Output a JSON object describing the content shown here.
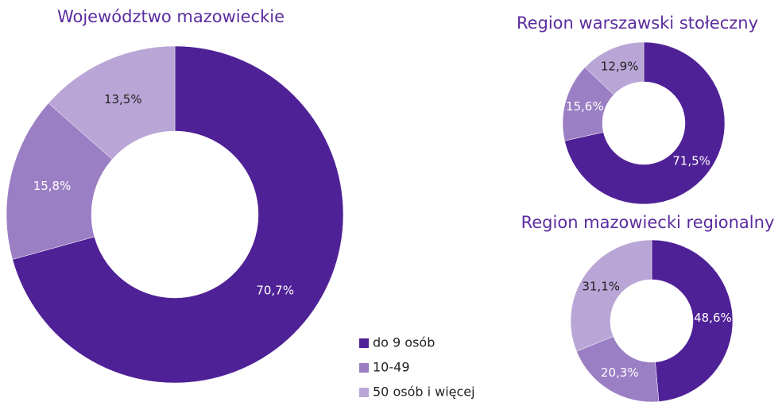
{
  "chart_data": [
    {
      "type": "donut",
      "title": "Województwo mazowieckie",
      "categories": [
        "do 9 osób",
        "10-49",
        "50 osób i więcej"
      ],
      "colors": [
        "#4f2196",
        "#9b7fc4",
        "#b9a6d6"
      ],
      "values": [
        70.7,
        15.8,
        13.5
      ],
      "value_labels": [
        "70,7%",
        "15,8%",
        "13,5%"
      ]
    },
    {
      "type": "donut",
      "title": "Region warszawski stołeczny",
      "values": [
        71.5,
        15.6,
        12.9
      ],
      "value_labels": [
        "71,5%",
        "15,6%",
        "12,9%"
      ]
    },
    {
      "type": "donut",
      "title": "Region mazowiecki regionalny",
      "values": [
        48.6,
        20.3,
        31.1
      ],
      "value_labels": [
        "48,6%",
        "20,3%",
        "31,1%"
      ]
    }
  ]
}
